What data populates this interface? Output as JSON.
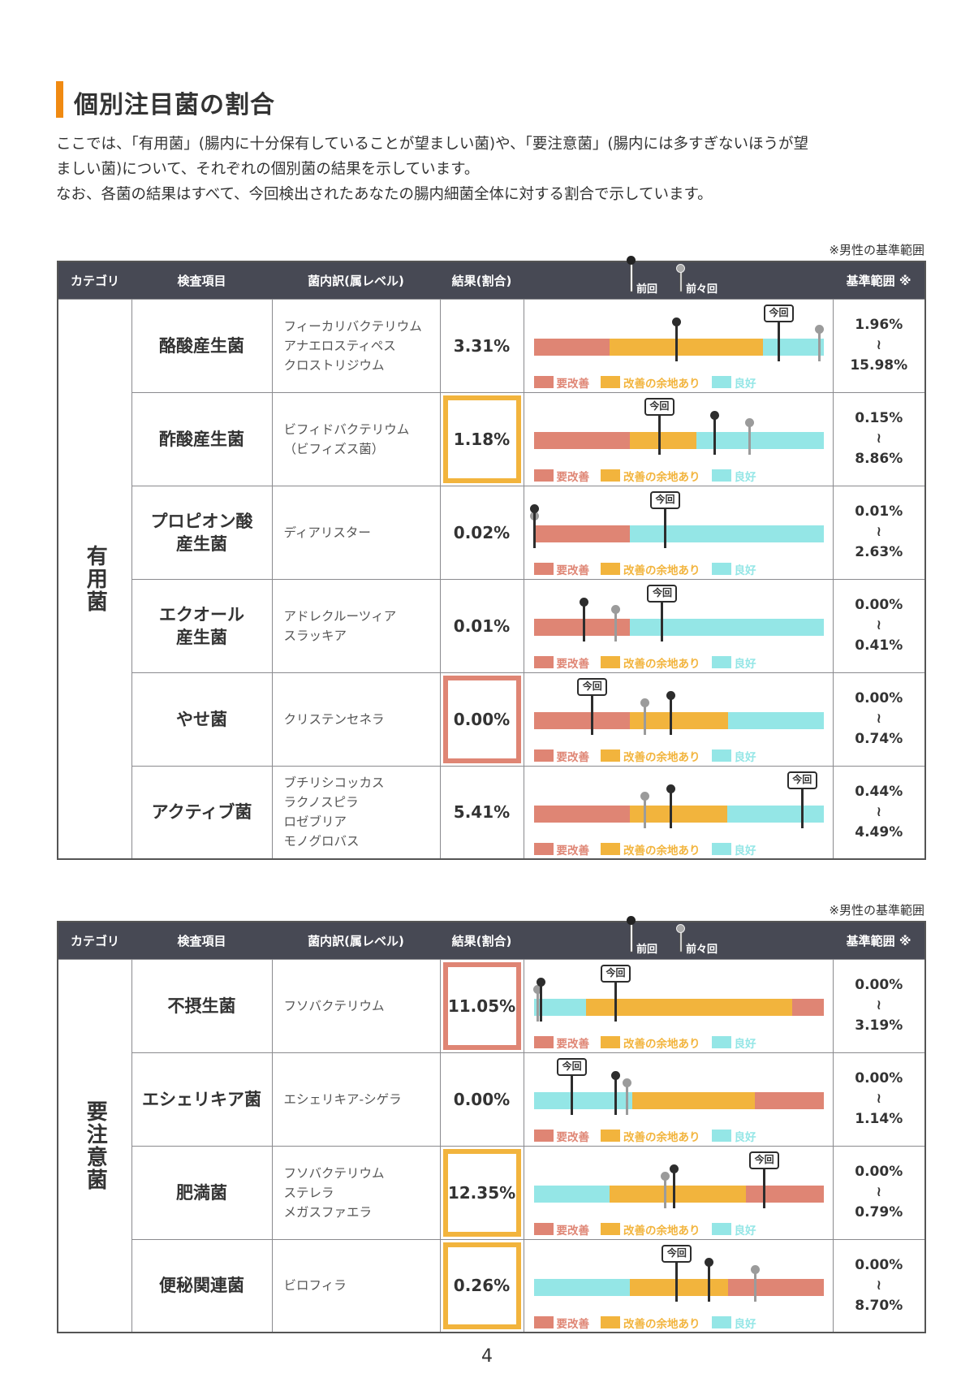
{
  "title": "個別注目菌の割合",
  "intro": [
    "ここでは、「有用菌」(腸内に十分保有していることが望ましい菌)や、「要注意菌」(腸内には多すぎないほうが望",
    "ましい菌)について、それぞれの個別菌の結果を示しています。",
    "なお、各菌の結果はすべて、今回検出されたあなたの腸内細菌全体に対する割合で示しています。"
  ],
  "note": "※男性の基準範囲",
  "headers": {
    "category": "カテゴリ",
    "item": "検査項目",
    "breakdown": "菌内訳(属レベル)",
    "result": "結果(割合)",
    "prev": "前回",
    "prev2": "前々回",
    "range": "基準範囲 ※"
  },
  "marker_now_label": "今回",
  "legend": {
    "bad": "要改善",
    "mid": "改善の余地あり",
    "good": "良好"
  },
  "colors": {
    "bad": "#df8574",
    "mid": "#f2b43d",
    "good": "#94e6e6",
    "highlight_orange": "#f2b43d",
    "highlight_red": "#df8574"
  },
  "tables": [
    {
      "category": "有用菌",
      "rows": [
        {
          "item": "酪酸産生菌",
          "breakdown": "フィーカリバクテリウム\nアナエロスティペス\nクロストリジウム",
          "result": "3.31%",
          "highlight": "",
          "range_low": "1.96%",
          "range_high": "15.98%",
          "segments": [
            [
              "bad",
              0.26
            ],
            [
              "mid",
              0.53
            ],
            [
              "good",
              0.21
            ]
          ],
          "now": 0.84,
          "prev": 0.49,
          "prev2": 0.98
        },
        {
          "item": "酢酸産生菌",
          "breakdown": "ビフィドバクテリウム\n（ビフィズス菌）",
          "result": "1.18%",
          "highlight": "orange",
          "range_low": "0.15%",
          "range_high": "8.86%",
          "segments": [
            [
              "bad",
              0.33
            ],
            [
              "mid",
              0.23
            ],
            [
              "good",
              0.44
            ]
          ],
          "now": 0.43,
          "prev": 0.62,
          "prev2": 0.74
        },
        {
          "item": "プロピオン酸\n産生菌",
          "breakdown": "ディアリスター",
          "result": "0.02%",
          "highlight": "",
          "range_low": "0.01%",
          "range_high": "2.63%",
          "segments": [
            [
              "bad",
              0.33
            ],
            [
              "good",
              0.67
            ]
          ],
          "now": 0.45,
          "prev": 0.0,
          "prev2": 0.0
        },
        {
          "item": "エクオール\n産生菌",
          "breakdown": "アドレクルーツィア\nスラッキア",
          "result": "0.01%",
          "highlight": "",
          "range_low": "0.00%",
          "range_high": "0.41%",
          "segments": [
            [
              "bad",
              0.33
            ],
            [
              "good",
              0.67
            ]
          ],
          "now": 0.44,
          "prev": 0.17,
          "prev2": 0.28
        },
        {
          "item": "やせ菌",
          "breakdown": "クリステンセネラ",
          "result": "0.00%",
          "highlight": "red",
          "range_low": "0.00%",
          "range_high": "0.74%",
          "segments": [
            [
              "bad",
              0.33
            ],
            [
              "mid",
              0.34
            ],
            [
              "good",
              0.33
            ]
          ],
          "now": 0.2,
          "prev": 0.47,
          "prev2": 0.38
        },
        {
          "item": "アクティブ菌",
          "breakdown": "ブチリシコッカス\nラクノスピラ\nロゼブリア\nモノグロバス",
          "result": "5.41%",
          "highlight": "",
          "range_low": "0.44%",
          "range_high": "4.49%",
          "segments": [
            [
              "bad",
              0.33
            ],
            [
              "mid",
              0.335
            ],
            [
              "good",
              0.335
            ]
          ],
          "now": 0.92,
          "prev": 0.47,
          "prev2": 0.38
        }
      ]
    },
    {
      "category": "要注意菌",
      "rows": [
        {
          "item": "不摂生菌",
          "breakdown": "フソバクテリウム",
          "result": "11.05%",
          "highlight": "red",
          "range_low": "0.00%",
          "range_high": "3.19%",
          "segments": [
            [
              "good",
              0.18
            ],
            [
              "mid",
              0.71
            ],
            [
              "bad",
              0.11
            ]
          ],
          "now": 0.28,
          "prev": 0.025,
          "prev2": 0.013
        },
        {
          "item": "エシェリキア菌",
          "breakdown": "エシェリキア-シゲラ",
          "result": "0.00%",
          "highlight": "",
          "range_low": "0.00%",
          "range_high": "1.14%",
          "segments": [
            [
              "good",
              0.34
            ],
            [
              "mid",
              0.42
            ],
            [
              "bad",
              0.24
            ]
          ],
          "now": 0.13,
          "prev": 0.28,
          "prev2": 0.32
        },
        {
          "item": "肥満菌",
          "breakdown": "フソバクテリウム\nステレラ\nメガスファエラ",
          "result": "12.35%",
          "highlight": "orange",
          "range_low": "0.00%",
          "range_high": "0.79%",
          "segments": [
            [
              "good",
              0.26
            ],
            [
              "mid",
              0.47
            ],
            [
              "bad",
              0.27
            ]
          ],
          "now": 0.79,
          "prev": 0.48,
          "prev2": 0.45
        },
        {
          "item": "便秘関連菌",
          "breakdown": "ビロフィラ",
          "result": "0.26%",
          "highlight": "orange",
          "range_low": "0.00%",
          "range_high": "8.70%",
          "segments": [
            [
              "good",
              0.33
            ],
            [
              "mid",
              0.34
            ],
            [
              "bad",
              0.33
            ]
          ],
          "now": 0.49,
          "prev": 0.6,
          "prev2": 0.76
        }
      ]
    }
  ],
  "page_number": "4"
}
